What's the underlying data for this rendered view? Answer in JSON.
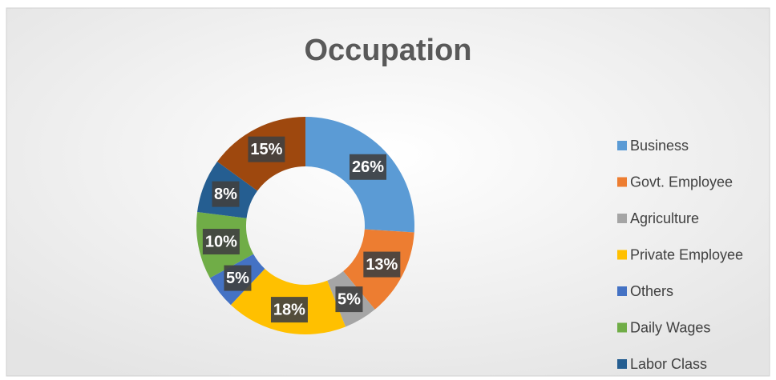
{
  "chart_data": {
    "type": "pie",
    "title": "Occupation",
    "categories": [
      "Business",
      "Govt. Employee",
      "Agriculture",
      "Private Employee",
      "Others",
      "Daily Wages",
      "Labor Class",
      null
    ],
    "values": [
      26,
      13,
      5,
      18,
      5,
      10,
      8,
      15
    ],
    "value_labels": [
      "26%",
      "13%",
      "5%",
      "18%",
      "5%",
      "10%",
      "8%",
      "15%"
    ],
    "colors": [
      "#5b9bd5",
      "#ed7d31",
      "#a5a5a5",
      "#ffc000",
      "#4472c4",
      "#70ad47",
      "#255e91",
      "#9e480e"
    ],
    "donut": true,
    "legend": "right"
  }
}
